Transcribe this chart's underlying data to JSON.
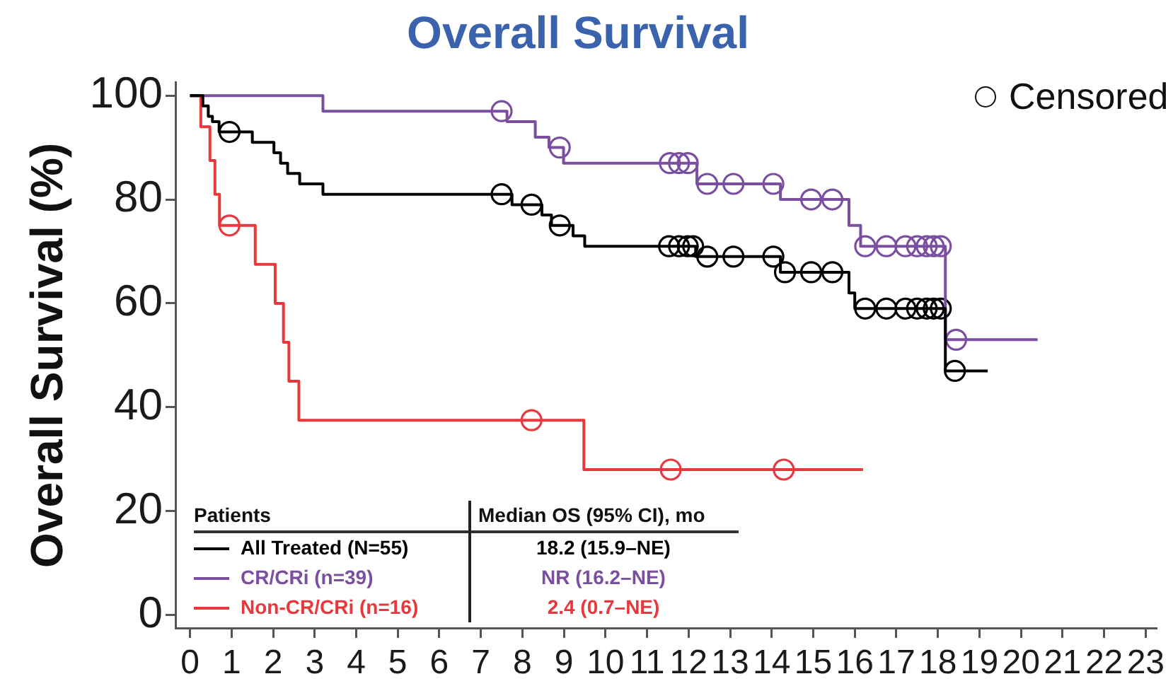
{
  "chart_data": {
    "type": "step",
    "title": "Overall Survival",
    "ylabel": "Overall Survival (%)",
    "legend_title": "Patients",
    "xlim": [
      -0.35,
      23.25
    ],
    "xticks": [
      0,
      1,
      2,
      3,
      4,
      5,
      6,
      7,
      8,
      9,
      10,
      11,
      12,
      13,
      14,
      15,
      16,
      17,
      18,
      19,
      20,
      21,
      22,
      23
    ],
    "ylim": [
      -2.5,
      102.5
    ],
    "yticks": [
      0,
      20,
      40,
      60,
      80,
      100
    ],
    "grid": false,
    "legend": "bottom left",
    "annotations": [
      "Median OS (95% CI), mo",
      "18.2 (15.9–NE)",
      "NR (16.2–NE)",
      "2.4 (0.7–NE)",
      "Censored"
    ],
    "series": [
      {
        "name": "All Treated (N=55)",
        "type": "step",
        "color": "#000000",
        "marker": "none",
        "x": [
          0,
          0.31,
          0.44,
          0.54,
          0.7,
          1.5,
          2.02,
          2.18,
          2.35,
          2.64,
          3.2,
          7.75,
          8.47,
          8.7,
          9.22,
          9.5,
          12.17,
          14.21,
          15.86,
          16.0,
          18.18,
          19.2
        ],
        "values": [
          100,
          98,
          96,
          95,
          93,
          91,
          89,
          87,
          85,
          83,
          81,
          79,
          77,
          75,
          73,
          71,
          69,
          66,
          62,
          59,
          47,
          47
        ]
      },
      {
        "name": "CR/CRi (n=39)",
        "type": "step",
        "color": "#7b4fa0",
        "marker": "none",
        "x": [
          0,
          3.2,
          7.63,
          8.31,
          8.64,
          8.99,
          12.2,
          14.21,
          15.86,
          16.14,
          18.18,
          20.4
        ],
        "values": [
          100,
          97,
          95,
          92,
          90,
          87,
          83,
          80,
          75,
          71,
          53,
          53
        ]
      },
      {
        "name": "Non-CR/CRi (n=16)",
        "type": "step",
        "color": "#e8383d",
        "marker": "none",
        "x": [
          0,
          0.26,
          0.48,
          0.6,
          0.71,
          1.57,
          2.05,
          2.25,
          2.38,
          2.62,
          9.48,
          16.2
        ],
        "values": [
          100,
          94,
          87.5,
          81,
          75,
          67.5,
          60,
          52.5,
          45,
          37.5,
          28,
          28
        ]
      },
      {
        "type": "scatter",
        "color": "#000000",
        "marker": "circle",
        "x": [
          0.95,
          7.5,
          8.22,
          8.9,
          11.53,
          11.77,
          11.98,
          12.11,
          12.45,
          13.08,
          14.04,
          14.32,
          14.95,
          15.46,
          16.25,
          16.76,
          17.22,
          17.5,
          17.73,
          17.9,
          18.07,
          18.41
        ],
        "values": [
          93,
          81,
          79,
          75,
          71,
          71,
          71,
          71,
          69,
          69,
          69,
          66,
          66,
          66,
          59,
          59,
          59,
          59,
          59,
          59,
          59,
          47
        ]
      },
      {
        "type": "scatter",
        "color": "#7b4fa0",
        "marker": "circle",
        "x": [
          7.5,
          8.9,
          11.55,
          11.77,
          11.98,
          12.45,
          13.08,
          14.04,
          14.95,
          15.46,
          16.25,
          16.76,
          17.22,
          17.5,
          17.73,
          17.9,
          18.07,
          18.44
        ],
        "values": [
          97,
          90,
          87,
          87,
          87,
          83,
          83,
          83,
          80,
          80,
          71,
          71,
          71,
          71,
          71,
          71,
          71,
          53
        ]
      },
      {
        "type": "scatter",
        "color": "#e8383d",
        "marker": "circle",
        "x": [
          0.95,
          8.22,
          11.57,
          14.29
        ],
        "values": [
          75,
          37.5,
          28,
          28
        ]
      }
    ]
  }
}
